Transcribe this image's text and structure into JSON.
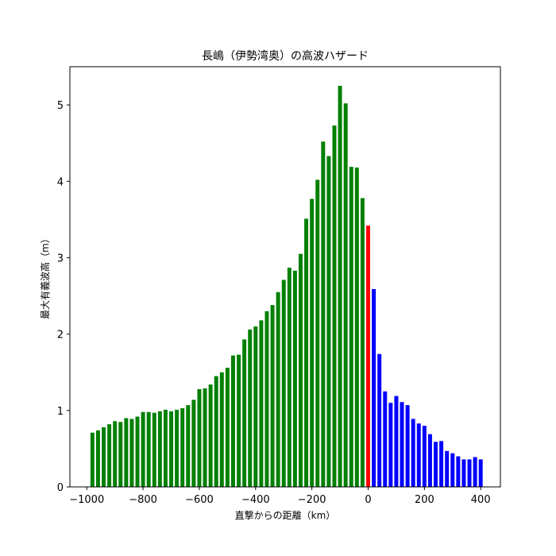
{
  "chart_data": {
    "type": "bar",
    "title": "長嶋（伊勢湾奥）の高波ハザード",
    "xlabel": "直撃からの距離（km）",
    "ylabel": "最大有義波高（m）",
    "xlim": [
      -1060,
      470
    ],
    "ylim": [
      0,
      5.5
    ],
    "xticks": [
      -1000,
      -800,
      -600,
      -400,
      -200,
      0,
      200,
      400
    ],
    "xtick_labels": [
      "−1000",
      "−800",
      "−600",
      "−400",
      "−200",
      "0",
      "200",
      "400"
    ],
    "yticks": [
      0,
      1,
      2,
      3,
      4,
      5
    ],
    "ytick_labels": [
      "0",
      "1",
      "2",
      "3",
      "4",
      "5"
    ],
    "bar_width": 14,
    "colors": {
      "before": "#008000",
      "landfall": "#ff0000",
      "after": "#0000ff"
    },
    "series": [
      {
        "group": "before",
        "x": [
          -980,
          -960,
          -940,
          -920,
          -900,
          -880,
          -860,
          -840,
          -820,
          -800,
          -780,
          -760,
          -740,
          -720,
          -700,
          -680,
          -660,
          -640,
          -620,
          -600,
          -580,
          -560,
          -540,
          -520,
          -500,
          -480,
          -460,
          -440,
          -420,
          -400,
          -380,
          -360,
          -340,
          -320,
          -300,
          -280,
          -260,
          -240,
          -220,
          -200,
          -180,
          -160,
          -140,
          -120,
          -100,
          -80,
          -60,
          -40,
          -20
        ],
        "values": [
          0.71,
          0.74,
          0.78,
          0.82,
          0.86,
          0.85,
          0.9,
          0.89,
          0.92,
          0.98,
          0.98,
          0.97,
          0.99,
          1.01,
          0.99,
          1.01,
          1.03,
          1.07,
          1.14,
          1.28,
          1.29,
          1.34,
          1.45,
          1.5,
          1.56,
          1.72,
          1.73,
          1.93,
          2.06,
          2.1,
          2.18,
          2.3,
          2.38,
          2.55,
          2.71,
          2.87,
          2.83,
          3.05,
          3.51,
          3.77,
          4.02,
          4.52,
          4.33,
          4.73,
          5.25,
          5.02,
          4.19,
          4.18,
          3.78
        ]
      },
      {
        "group": "landfall",
        "x": [
          0
        ],
        "values": [
          3.42
        ]
      },
      {
        "group": "after",
        "x": [
          20,
          40,
          60,
          80,
          100,
          120,
          140,
          160,
          180,
          200,
          220,
          240,
          260,
          280,
          300,
          320,
          340,
          360,
          380,
          400
        ],
        "values": [
          2.59,
          1.74,
          1.25,
          1.1,
          1.19,
          1.11,
          1.07,
          0.89,
          0.83,
          0.8,
          0.69,
          0.59,
          0.6,
          0.47,
          0.44,
          0.4,
          0.36,
          0.36,
          0.39,
          0.36
        ]
      }
    ]
  }
}
